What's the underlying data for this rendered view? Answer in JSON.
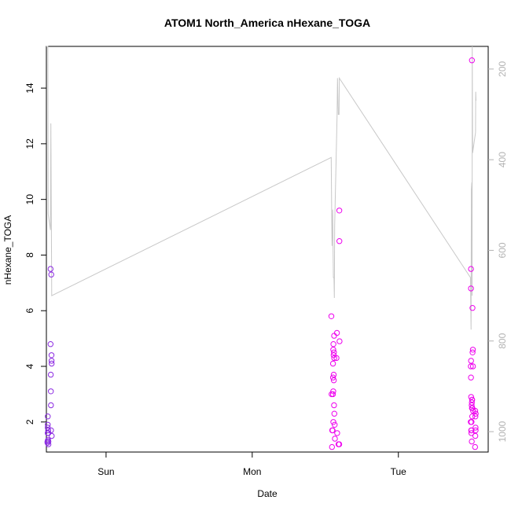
{
  "chart_data": {
    "type": "scatter",
    "title": "ATOM1 North_America nHexane_TOGA",
    "xlabel": "Date",
    "ylabel": "nHexane_TOGA",
    "x_axis": {
      "type": "date",
      "range": [
        "2016-07-30T14:12",
        "2016-08-02T14:45"
      ],
      "ticks": [
        {
          "label": "Sun",
          "value": "2016-07-31T00:00"
        },
        {
          "label": "Mon",
          "value": "2016-08-01T00:00"
        },
        {
          "label": "Tue",
          "value": "2016-08-02T00:00"
        }
      ]
    },
    "y_axis": {
      "range": [
        0.92,
        15.5
      ],
      "ticks": [
        2,
        4,
        6,
        8,
        10,
        12,
        14
      ]
    },
    "y2_axis": {
      "range": [
        1045,
        150
      ],
      "reversed": true,
      "tick_color": "#b3b3b3",
      "ticks": [
        200,
        400,
        600,
        800,
        1000
      ]
    },
    "grid": false,
    "legend": "none",
    "colors": {
      "purple": "#8a2be2",
      "magenta": "#ee00ee",
      "line": "#c8c8c8"
    },
    "series": [
      {
        "marker": "circle-open",
        "color_scale": "purple-to-magenta over time",
        "points": [
          [
            "2016-07-30T14:23",
            1.3
          ],
          [
            "2016-07-30T14:23",
            1.25
          ],
          [
            "2016-07-30T14:25",
            1.6
          ],
          [
            "2016-07-30T14:25",
            1.8
          ],
          [
            "2016-07-30T14:26",
            2.2
          ],
          [
            "2016-07-30T14:26",
            1.9
          ],
          [
            "2016-07-30T14:28",
            1.6
          ],
          [
            "2016-07-30T14:28",
            1.35
          ],
          [
            "2016-07-30T14:30",
            1.7
          ],
          [
            "2016-07-30T14:31",
            1.6
          ],
          [
            "2016-07-30T14:32",
            1.3
          ],
          [
            "2016-07-30T14:32",
            1.2
          ],
          [
            "2016-07-30T14:53",
            7.5
          ],
          [
            "2016-07-30T14:53",
            4.8
          ],
          [
            "2016-07-30T14:55",
            3.7
          ],
          [
            "2016-07-30T14:56",
            3.1
          ],
          [
            "2016-07-30T14:57",
            2.6
          ],
          [
            "2016-07-30T14:58",
            1.7
          ],
          [
            "2016-07-30T15:00",
            7.3
          ],
          [
            "2016-07-30T15:02",
            4.4
          ],
          [
            "2016-07-30T15:03",
            4.2
          ],
          [
            "2016-07-30T15:04",
            4.1
          ],
          [
            "2016-07-30T15:05",
            1.5
          ],
          [
            "2016-08-01T13:06",
            1.1
          ],
          [
            "2016-08-01T13:00",
            5.8
          ],
          [
            "2016-08-01T13:02",
            3.0
          ],
          [
            "2016-08-01T13:08",
            1.7
          ],
          [
            "2016-08-01T13:12",
            1.7
          ],
          [
            "2016-08-01T13:15",
            3.0
          ],
          [
            "2016-08-01T13:16",
            3.6
          ],
          [
            "2016-08-01T13:16",
            4.1
          ],
          [
            "2016-08-01T13:18",
            4.6
          ],
          [
            "2016-08-01T13:18",
            3.1
          ],
          [
            "2016-08-01T13:19",
            2.0
          ],
          [
            "2016-08-01T13:20",
            4.8
          ],
          [
            "2016-08-01T13:22",
            4.4
          ],
          [
            "2016-08-01T13:23",
            3.7
          ],
          [
            "2016-08-01T13:24",
            3.5
          ],
          [
            "2016-08-01T13:25",
            4.5
          ],
          [
            "2016-08-01T13:26",
            2.6
          ],
          [
            "2016-08-01T13:27",
            5.1
          ],
          [
            "2016-08-01T13:28",
            4.3
          ],
          [
            "2016-08-01T13:29",
            2.3
          ],
          [
            "2016-08-01T13:32",
            1.9
          ],
          [
            "2016-08-01T13:35",
            1.4
          ],
          [
            "2016-08-01T13:50",
            4.3
          ],
          [
            "2016-08-01T13:55",
            5.2
          ],
          [
            "2016-08-01T13:57",
            1.6
          ],
          [
            "2016-08-01T14:10",
            1.2
          ],
          [
            "2016-08-01T14:17",
            1.2
          ],
          [
            "2016-08-01T14:18",
            9.6
          ],
          [
            "2016-08-01T14:19",
            8.5
          ],
          [
            "2016-08-01T14:20",
            4.9
          ],
          [
            "2016-08-02T11:55",
            7.5
          ],
          [
            "2016-08-02T11:55",
            6.8
          ],
          [
            "2016-08-02T11:54",
            4.0
          ],
          [
            "2016-08-02T11:56",
            4.2
          ],
          [
            "2016-08-02T11:55",
            3.6
          ],
          [
            "2016-08-02T11:57",
            2.9
          ],
          [
            "2016-08-02T11:53",
            2.0
          ],
          [
            "2016-08-02T11:58",
            1.7
          ],
          [
            "2016-08-02T11:59",
            1.6
          ],
          [
            "2016-08-02T12:00",
            1.7
          ],
          [
            "2016-08-02T12:01",
            2.0
          ],
          [
            "2016-08-02T12:02",
            2.6
          ],
          [
            "2016-08-02T12:03",
            1.3
          ],
          [
            "2016-08-02T12:04",
            2.7
          ],
          [
            "2016-08-02T12:05",
            2.5
          ],
          [
            "2016-08-02T12:06",
            2.8
          ],
          [
            "2016-08-02T12:07",
            2.8
          ],
          [
            "2016-08-02T12:08",
            2.2
          ],
          [
            "2016-08-02T12:09",
            2.5
          ],
          [
            "2016-08-02T12:05",
            15.0
          ],
          [
            "2016-08-02T12:10",
            6.1
          ],
          [
            "2016-08-02T12:11",
            4.5
          ],
          [
            "2016-08-02T12:14",
            4.6
          ],
          [
            "2016-08-02T12:15",
            4.0
          ],
          [
            "2016-08-02T12:16",
            2.4
          ],
          [
            "2016-08-02T12:36",
            1.1
          ],
          [
            "2016-08-02T12:37",
            2.4
          ],
          [
            "2016-08-02T12:38",
            1.5
          ],
          [
            "2016-08-02T12:39",
            2.2
          ],
          [
            "2016-08-02T12:40",
            1.8
          ],
          [
            "2016-08-02T12:41",
            1.7
          ],
          [
            "2016-08-02T12:42",
            2.3
          ]
        ]
      },
      {
        "type": "line",
        "axis": "y2",
        "color": "#c8c8c8",
        "points": [
          [
            "2016-07-30T14:12",
            150
          ],
          [
            "2016-07-30T14:27",
            150
          ],
          [
            "2016-07-30T14:30",
            520
          ],
          [
            "2016-07-30T14:52",
            555
          ],
          [
            "2016-07-30T14:56",
            320
          ],
          [
            "2016-07-30T15:05",
            700
          ],
          [
            "2016-08-01T12:58",
            395
          ],
          [
            "2016-08-01T13:06",
            590
          ],
          [
            "2016-08-01T13:12",
            510
          ],
          [
            "2016-08-01T13:20",
            660
          ],
          [
            "2016-08-01T13:25",
            660
          ],
          [
            "2016-08-01T13:29",
            705
          ],
          [
            "2016-08-01T13:32",
            545
          ],
          [
            "2016-08-01T13:56",
            300
          ],
          [
            "2016-08-01T14:00",
            220
          ],
          [
            "2016-08-01T14:08",
            300
          ],
          [
            "2016-08-01T14:16",
            300
          ],
          [
            "2016-08-01T14:18",
            220
          ],
          [
            "2016-08-02T11:50",
            660
          ],
          [
            "2016-08-02T11:56",
            775
          ],
          [
            "2016-08-02T11:59",
            465
          ],
          [
            "2016-08-02T12:04",
            450
          ],
          [
            "2016-08-02T12:06",
            700
          ],
          [
            "2016-08-02T12:08",
            150
          ],
          [
            "2016-08-02T12:12",
            385
          ],
          [
            "2016-08-02T12:40",
            340
          ],
          [
            "2016-08-02T12:42",
            250
          ],
          [
            "2016-08-02T12:45",
            270
          ]
        ]
      }
    ]
  }
}
